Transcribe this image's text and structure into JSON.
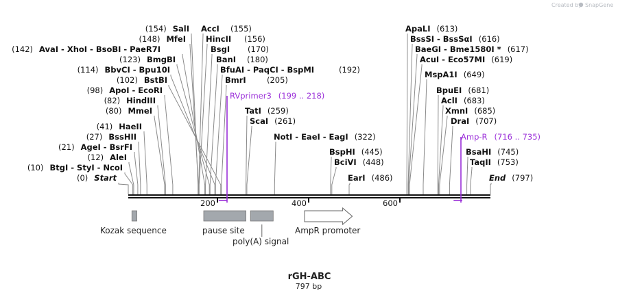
{
  "branding": {
    "created_by": "Created by",
    "app": "SnapGene"
  },
  "sequence": {
    "name": "rGH-ABC",
    "length_label": "797 bp",
    "length": 797
  },
  "ruler": {
    "ticks": [
      "200",
      "400",
      "600"
    ]
  },
  "enzyme_rows": [
    {
      "pos": 613,
      "text": "ApaLI",
      "num": "(613)"
    },
    {
      "pos": 155,
      "pre": "(154)",
      "text": "SalI",
      "text2": "AccI",
      "num": "(155)"
    },
    {
      "pos": 156,
      "pre": "(148)",
      "text": "MfeI",
      "text2": "HincII",
      "num": "(156)"
    },
    {
      "pos": 616,
      "text": "BssSI - BssSαI",
      "num": "(616)"
    },
    {
      "pos": 170,
      "pre": "(142)",
      "text": "AvaI - XhoI - BsoBI - PaeR7I",
      "text2": "BsgI",
      "num": "(170)"
    },
    {
      "pos": 617,
      "text": "BaeGI - Bme1580I *",
      "num": "(617)"
    },
    {
      "pos": 180,
      "pre": "(123)",
      "text": "BmgBI",
      "text2": "BanI",
      "num": "(180)"
    },
    {
      "pos": 619,
      "text": "AcuI - Eco57MI",
      "num": "(619)"
    },
    {
      "pos": 192,
      "pre": "(114)",
      "text": "BbvCI - Bpu10I",
      "text2": "BfuAI - PaqCI - BspMI",
      "num": "(192)"
    },
    {
      "pos": 649,
      "text": "MspA1I",
      "num": "(649)"
    },
    {
      "pos": 205,
      "pre": "(102)",
      "text": "BstBI",
      "text2": "BmrI",
      "num": "(205)"
    },
    {
      "pos": 681,
      "text": "BpuEI",
      "num": "(681)"
    },
    {
      "pos": 98,
      "pre": "(98)",
      "text": "ApoI - EcoRI"
    },
    {
      "pos": 683,
      "text": "AclI",
      "num": "(683)"
    },
    {
      "pos": 82,
      "pre": "(82)",
      "text": "HindIII"
    },
    {
      "pos": 685,
      "text": "XmnI",
      "num": "(685)"
    },
    {
      "pos": 80,
      "pre": "(80)",
      "text": "MmeI"
    },
    {
      "pos": 259,
      "text": "TatI",
      "num": "(259)"
    },
    {
      "pos": 707,
      "text": "DraI",
      "num": "(707)"
    },
    {
      "pos": 261,
      "text": "ScaI",
      "num": "(261)"
    },
    {
      "pos": 41,
      "pre": "(41)",
      "text": "HaeII"
    },
    {
      "pos": 322,
      "text": "NotI - EaeI - EagI",
      "num": "(322)"
    },
    {
      "pos": 27,
      "pre": "(27)",
      "text": "BssHII"
    },
    {
      "pos": 445,
      "text": "BspHI",
      "num": "(445)"
    },
    {
      "pos": 745,
      "text": "BsaHI",
      "num": "(745)"
    },
    {
      "pos": 21,
      "pre": "(21)",
      "text": "AgeI - BsrFI"
    },
    {
      "pos": 12,
      "pre": "(12)",
      "text": "AleI"
    },
    {
      "pos": 448,
      "text": "BciVI",
      "num": "(448)"
    },
    {
      "pos": 753,
      "text": "TaqII",
      "num": "(753)"
    },
    {
      "pos": 10,
      "pre": "(10)",
      "text": "BtgI - StyI - NcoI"
    },
    {
      "pos": 0,
      "pre": "(0)",
      "text": "Start"
    },
    {
      "pos": 486,
      "text": "EarI",
      "num": "(486)"
    },
    {
      "pos": 797,
      "text": "End",
      "num": "(797)"
    }
  ],
  "primers": [
    {
      "name": "RVprimer3",
      "range": "(199 .. 218)",
      "start": 199,
      "end": 218
    },
    {
      "name": "Amp-R",
      "range": "(716 .. 735)",
      "start": 716,
      "end": 735
    }
  ],
  "features": [
    {
      "name": "Kozak sequence",
      "start": 8,
      "end": 19,
      "shape": "box"
    },
    {
      "name": "pause site",
      "start": 166,
      "end": 259,
      "shape": "box"
    },
    {
      "name": "poly(A) signal",
      "start": 269,
      "end": 319,
      "shape": "box"
    },
    {
      "name": "AmpR promoter",
      "start": 388,
      "end": 493,
      "shape": "arrow"
    }
  ],
  "colors": {
    "primer": "#9b30d9",
    "feature": "#a3a8ad",
    "backbone": "#111111"
  }
}
